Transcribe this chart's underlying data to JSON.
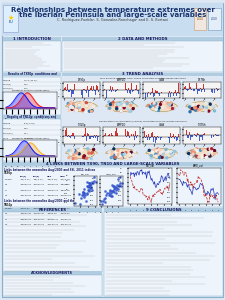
{
  "title_line1": "Relationships between temperature extremes over",
  "title_line2": "the Iberian Peninsula and large-scale variables",
  "subtitle": "C. Rodriguez-Puebla¹, S. Gonzalez-Ronchaga² and E. S. Kortaxi",
  "bg_color": "#dde8f4",
  "header_bg": "#c8ddef",
  "panel_bg": "#edf4fb",
  "section_header_bg": "#b0cce0",
  "title_color": "#1a3570",
  "section_title_color": "#1a1a60",
  "text_color": "#222222",
  "line_color": "#999999",
  "border_color": "#8ab0cc"
}
